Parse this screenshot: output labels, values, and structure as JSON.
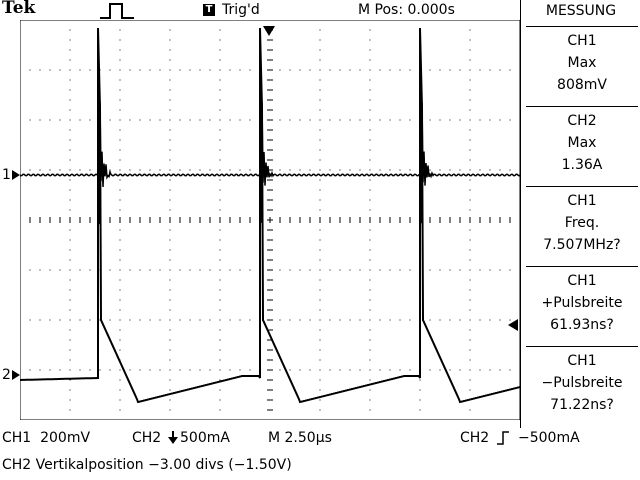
{
  "header": {
    "brand": "Tek",
    "trigger_icon": "T",
    "trigger_status": "Trig'd",
    "position": "M Pos: 0.000s"
  },
  "menu": {
    "title": "MESSUNG",
    "items": [
      {
        "channel": "CH1",
        "label": "Max",
        "value": "808mV"
      },
      {
        "channel": "CH2",
        "label": "Max",
        "value": "1.36A"
      },
      {
        "channel": "CH1",
        "label": "Freq.",
        "value": "7.507MHz?"
      },
      {
        "channel": "CH1",
        "label": "+Pulsbreite",
        "value": "61.93ns?"
      },
      {
        "channel": "CH1",
        "label": "−Pulsbreite",
        "value": "71.22ns?"
      }
    ]
  },
  "markers": {
    "ch1": "1",
    "ch2": "2"
  },
  "footer": {
    "ch1_scale": "CH1  200mV",
    "ch2_scale": "CH2",
    "ch2_scale_value": "500mA",
    "timebase": "M 2.50µs",
    "trigger_source": "CH2",
    "trigger_level": "−500mA",
    "status": "CH2 Vertikalposition −3.00 divs (−1.50V)"
  },
  "colors": {
    "background": "#ffffff",
    "trace": "#000000",
    "graticule": "#000000"
  }
}
